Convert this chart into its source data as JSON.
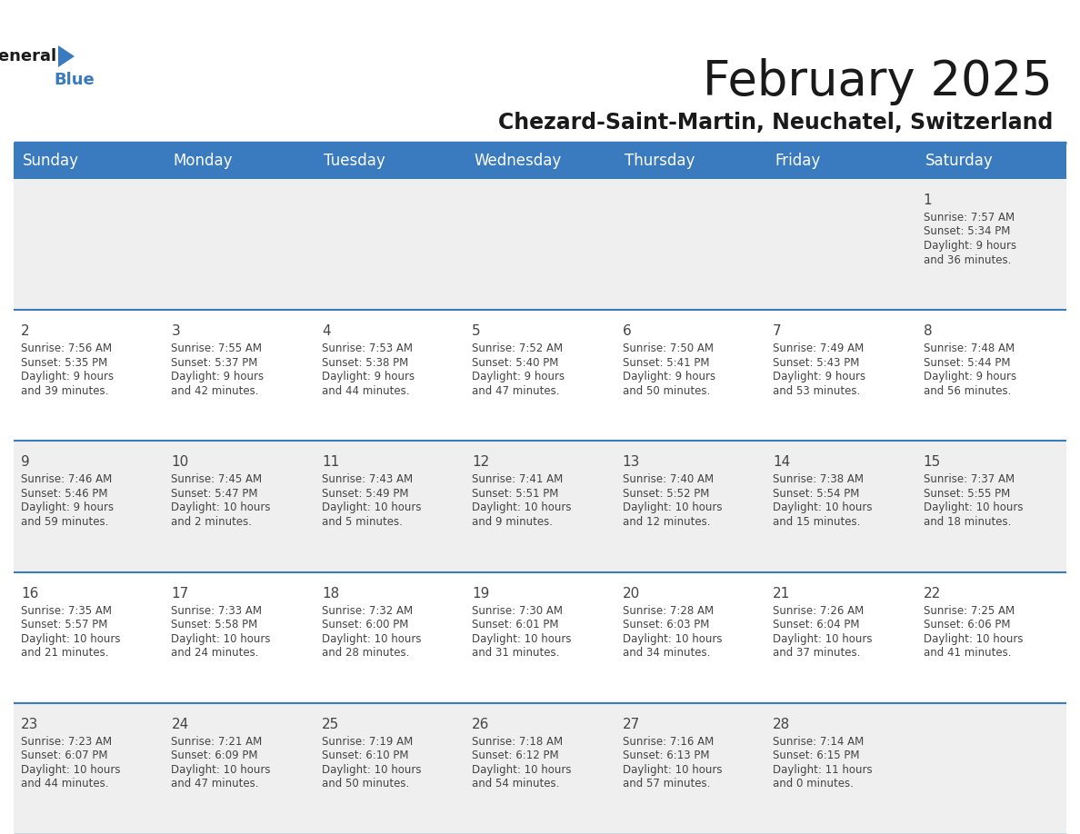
{
  "title": "February 2025",
  "subtitle": "Chezard-Saint-Martin, Neuchatel, Switzerland",
  "header_color": "#3a7abf",
  "header_text_color": "#ffffff",
  "day_names": [
    "Sunday",
    "Monday",
    "Tuesday",
    "Wednesday",
    "Thursday",
    "Friday",
    "Saturday"
  ],
  "title_color": "#1a1a1a",
  "subtitle_color": "#1a1a1a",
  "bg_color": "#ffffff",
  "cell_bg_even": "#efefef",
  "cell_bg_odd": "#ffffff",
  "row_line_color": "#3a7abf",
  "text_color": "#444444",
  "days": [
    {
      "day": 1,
      "col": 6,
      "row": 0,
      "sunrise": "7:57 AM",
      "sunset": "5:34 PM",
      "daylight_h": "9 hours",
      "daylight_m": "36 minutes."
    },
    {
      "day": 2,
      "col": 0,
      "row": 1,
      "sunrise": "7:56 AM",
      "sunset": "5:35 PM",
      "daylight_h": "9 hours",
      "daylight_m": "39 minutes."
    },
    {
      "day": 3,
      "col": 1,
      "row": 1,
      "sunrise": "7:55 AM",
      "sunset": "5:37 PM",
      "daylight_h": "9 hours",
      "daylight_m": "42 minutes."
    },
    {
      "day": 4,
      "col": 2,
      "row": 1,
      "sunrise": "7:53 AM",
      "sunset": "5:38 PM",
      "daylight_h": "9 hours",
      "daylight_m": "44 minutes."
    },
    {
      "day": 5,
      "col": 3,
      "row": 1,
      "sunrise": "7:52 AM",
      "sunset": "5:40 PM",
      "daylight_h": "9 hours",
      "daylight_m": "47 minutes."
    },
    {
      "day": 6,
      "col": 4,
      "row": 1,
      "sunrise": "7:50 AM",
      "sunset": "5:41 PM",
      "daylight_h": "9 hours",
      "daylight_m": "50 minutes."
    },
    {
      "day": 7,
      "col": 5,
      "row": 1,
      "sunrise": "7:49 AM",
      "sunset": "5:43 PM",
      "daylight_h": "9 hours",
      "daylight_m": "53 minutes."
    },
    {
      "day": 8,
      "col": 6,
      "row": 1,
      "sunrise": "7:48 AM",
      "sunset": "5:44 PM",
      "daylight_h": "9 hours",
      "daylight_m": "56 minutes."
    },
    {
      "day": 9,
      "col": 0,
      "row": 2,
      "sunrise": "7:46 AM",
      "sunset": "5:46 PM",
      "daylight_h": "9 hours",
      "daylight_m": "59 minutes."
    },
    {
      "day": 10,
      "col": 1,
      "row": 2,
      "sunrise": "7:45 AM",
      "sunset": "5:47 PM",
      "daylight_h": "10 hours",
      "daylight_m": "2 minutes."
    },
    {
      "day": 11,
      "col": 2,
      "row": 2,
      "sunrise": "7:43 AM",
      "sunset": "5:49 PM",
      "daylight_h": "10 hours",
      "daylight_m": "5 minutes."
    },
    {
      "day": 12,
      "col": 3,
      "row": 2,
      "sunrise": "7:41 AM",
      "sunset": "5:51 PM",
      "daylight_h": "10 hours",
      "daylight_m": "9 minutes."
    },
    {
      "day": 13,
      "col": 4,
      "row": 2,
      "sunrise": "7:40 AM",
      "sunset": "5:52 PM",
      "daylight_h": "10 hours",
      "daylight_m": "12 minutes."
    },
    {
      "day": 14,
      "col": 5,
      "row": 2,
      "sunrise": "7:38 AM",
      "sunset": "5:54 PM",
      "daylight_h": "10 hours",
      "daylight_m": "15 minutes."
    },
    {
      "day": 15,
      "col": 6,
      "row": 2,
      "sunrise": "7:37 AM",
      "sunset": "5:55 PM",
      "daylight_h": "10 hours",
      "daylight_m": "18 minutes."
    },
    {
      "day": 16,
      "col": 0,
      "row": 3,
      "sunrise": "7:35 AM",
      "sunset": "5:57 PM",
      "daylight_h": "10 hours",
      "daylight_m": "21 minutes."
    },
    {
      "day": 17,
      "col": 1,
      "row": 3,
      "sunrise": "7:33 AM",
      "sunset": "5:58 PM",
      "daylight_h": "10 hours",
      "daylight_m": "24 minutes."
    },
    {
      "day": 18,
      "col": 2,
      "row": 3,
      "sunrise": "7:32 AM",
      "sunset": "6:00 PM",
      "daylight_h": "10 hours",
      "daylight_m": "28 minutes."
    },
    {
      "day": 19,
      "col": 3,
      "row": 3,
      "sunrise": "7:30 AM",
      "sunset": "6:01 PM",
      "daylight_h": "10 hours",
      "daylight_m": "31 minutes."
    },
    {
      "day": 20,
      "col": 4,
      "row": 3,
      "sunrise": "7:28 AM",
      "sunset": "6:03 PM",
      "daylight_h": "10 hours",
      "daylight_m": "34 minutes."
    },
    {
      "day": 21,
      "col": 5,
      "row": 3,
      "sunrise": "7:26 AM",
      "sunset": "6:04 PM",
      "daylight_h": "10 hours",
      "daylight_m": "37 minutes."
    },
    {
      "day": 22,
      "col": 6,
      "row": 3,
      "sunrise": "7:25 AM",
      "sunset": "6:06 PM",
      "daylight_h": "10 hours",
      "daylight_m": "41 minutes."
    },
    {
      "day": 23,
      "col": 0,
      "row": 4,
      "sunrise": "7:23 AM",
      "sunset": "6:07 PM",
      "daylight_h": "10 hours",
      "daylight_m": "44 minutes."
    },
    {
      "day": 24,
      "col": 1,
      "row": 4,
      "sunrise": "7:21 AM",
      "sunset": "6:09 PM",
      "daylight_h": "10 hours",
      "daylight_m": "47 minutes."
    },
    {
      "day": 25,
      "col": 2,
      "row": 4,
      "sunrise": "7:19 AM",
      "sunset": "6:10 PM",
      "daylight_h": "10 hours",
      "daylight_m": "50 minutes."
    },
    {
      "day": 26,
      "col": 3,
      "row": 4,
      "sunrise": "7:18 AM",
      "sunset": "6:12 PM",
      "daylight_h": "10 hours",
      "daylight_m": "54 minutes."
    },
    {
      "day": 27,
      "col": 4,
      "row": 4,
      "sunrise": "7:16 AM",
      "sunset": "6:13 PM",
      "daylight_h": "10 hours",
      "daylight_m": "57 minutes."
    },
    {
      "day": 28,
      "col": 5,
      "row": 4,
      "sunrise": "7:14 AM",
      "sunset": "6:15 PM",
      "daylight_h": "11 hours",
      "daylight_m": "0 minutes."
    }
  ],
  "num_rows": 5,
  "title_fontsize": 38,
  "subtitle_fontsize": 17,
  "header_fontsize": 12,
  "day_num_fontsize": 11,
  "cell_text_fontsize": 8.5
}
